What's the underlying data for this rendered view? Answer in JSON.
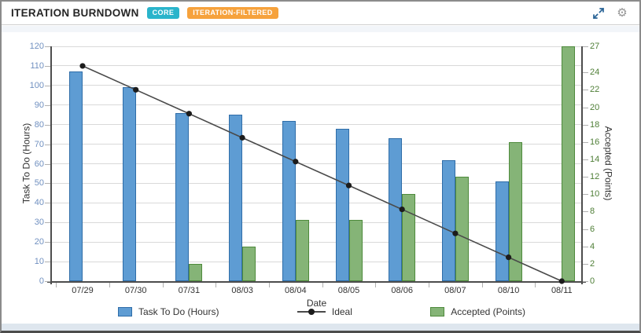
{
  "header": {
    "title": "ITERATION BURNDOWN",
    "badges": [
      {
        "label": "CORE",
        "color": "#2ab4cb"
      },
      {
        "label": "ITERATION-FILTERED",
        "color": "#f6a23c"
      }
    ]
  },
  "chart_data": {
    "type": "bar",
    "title": "ITERATION BURNDOWN",
    "xlabel": "Date",
    "grid": true,
    "legend_position": "bottom",
    "left_axis": {
      "label": "Task To Do (Hours)",
      "min": 0,
      "max": 120,
      "ticks": [
        0,
        10,
        20,
        30,
        40,
        50,
        60,
        70,
        80,
        90,
        100,
        110,
        120
      ],
      "tick_color": "#7090c0"
    },
    "right_axis": {
      "label": "Accepted (Points)",
      "min": 0,
      "max": 27,
      "ticks": [
        0,
        2,
        4,
        6,
        8,
        10,
        12,
        14,
        16,
        18,
        20,
        22,
        24,
        27
      ],
      "tick_color": "#4e7e36"
    },
    "categories": [
      "07/29",
      "07/30",
      "07/31",
      "08/03",
      "08/04",
      "08/05",
      "08/06",
      "08/07",
      "08/10",
      "08/11"
    ],
    "series": [
      {
        "name": "Task To Do (Hours)",
        "type": "bar",
        "axis": "left",
        "fill": "#5e9cd3",
        "border": "#2f6da8",
        "values": [
          107,
          99,
          86,
          85,
          82,
          78,
          73,
          62,
          51,
          null
        ]
      },
      {
        "name": "Ideal",
        "type": "line",
        "axis": "left",
        "color": "#4a4a4a",
        "marker_color": "#1c1c1c",
        "values": [
          110,
          97.8,
          85.6,
          73.3,
          61.1,
          48.9,
          36.7,
          24.4,
          12.2,
          0
        ]
      },
      {
        "name": "Accepted (Points)",
        "type": "bar",
        "axis": "right",
        "fill": "#85b477",
        "border": "#4e8a3c",
        "values": [
          null,
          null,
          2,
          4,
          7,
          7,
          10,
          12,
          16,
          27
        ]
      }
    ]
  }
}
